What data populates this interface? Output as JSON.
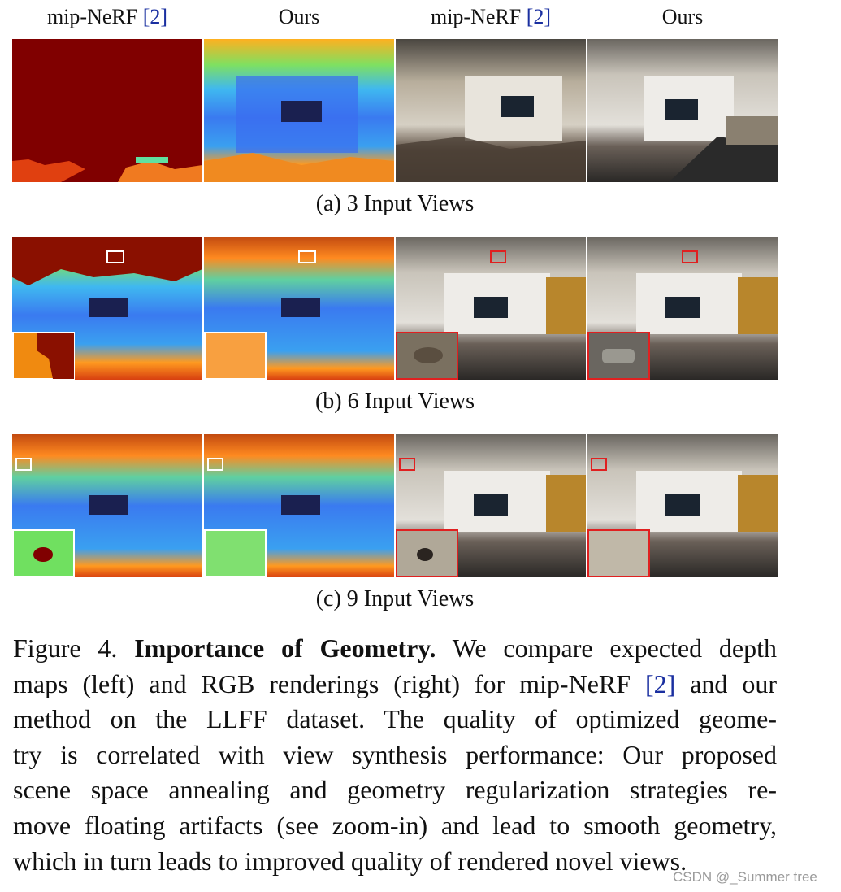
{
  "columns": [
    {
      "name": "mip-NeRF",
      "cite": "[2]"
    },
    {
      "name": "Ours",
      "cite": ""
    },
    {
      "name": "mip-NeRF",
      "cite": "[2]"
    },
    {
      "name": "Ours",
      "cite": ""
    }
  ],
  "rows": [
    {
      "label": "(a) 3 Input Views"
    },
    {
      "label": "(b) 6 Input Views"
    },
    {
      "label": "(c) 9 Input Views"
    }
  ],
  "caption": {
    "figure_label": "Figure 4.",
    "bold_title": "Importance of Geometry.",
    "line1_rest": " We compare expected depth",
    "line2a": "maps (left) and RGB renderings (right) for mip-NeRF ",
    "line2_cite": "[2]",
    "line2b": " and our",
    "line3": "method on the LLFF dataset.  The quality of optimized geome-",
    "line4": "try is correlated with view synthesis performance: Our proposed",
    "line5": "scene space annealing and geometry regularization strategies re-",
    "line6": "move floating artifacts (see zoom-in) and lead to smooth geometry,",
    "line7": "which in turn leads to improved quality of rendered novel views."
  },
  "watermark": "CSDN @_Summer tree"
}
